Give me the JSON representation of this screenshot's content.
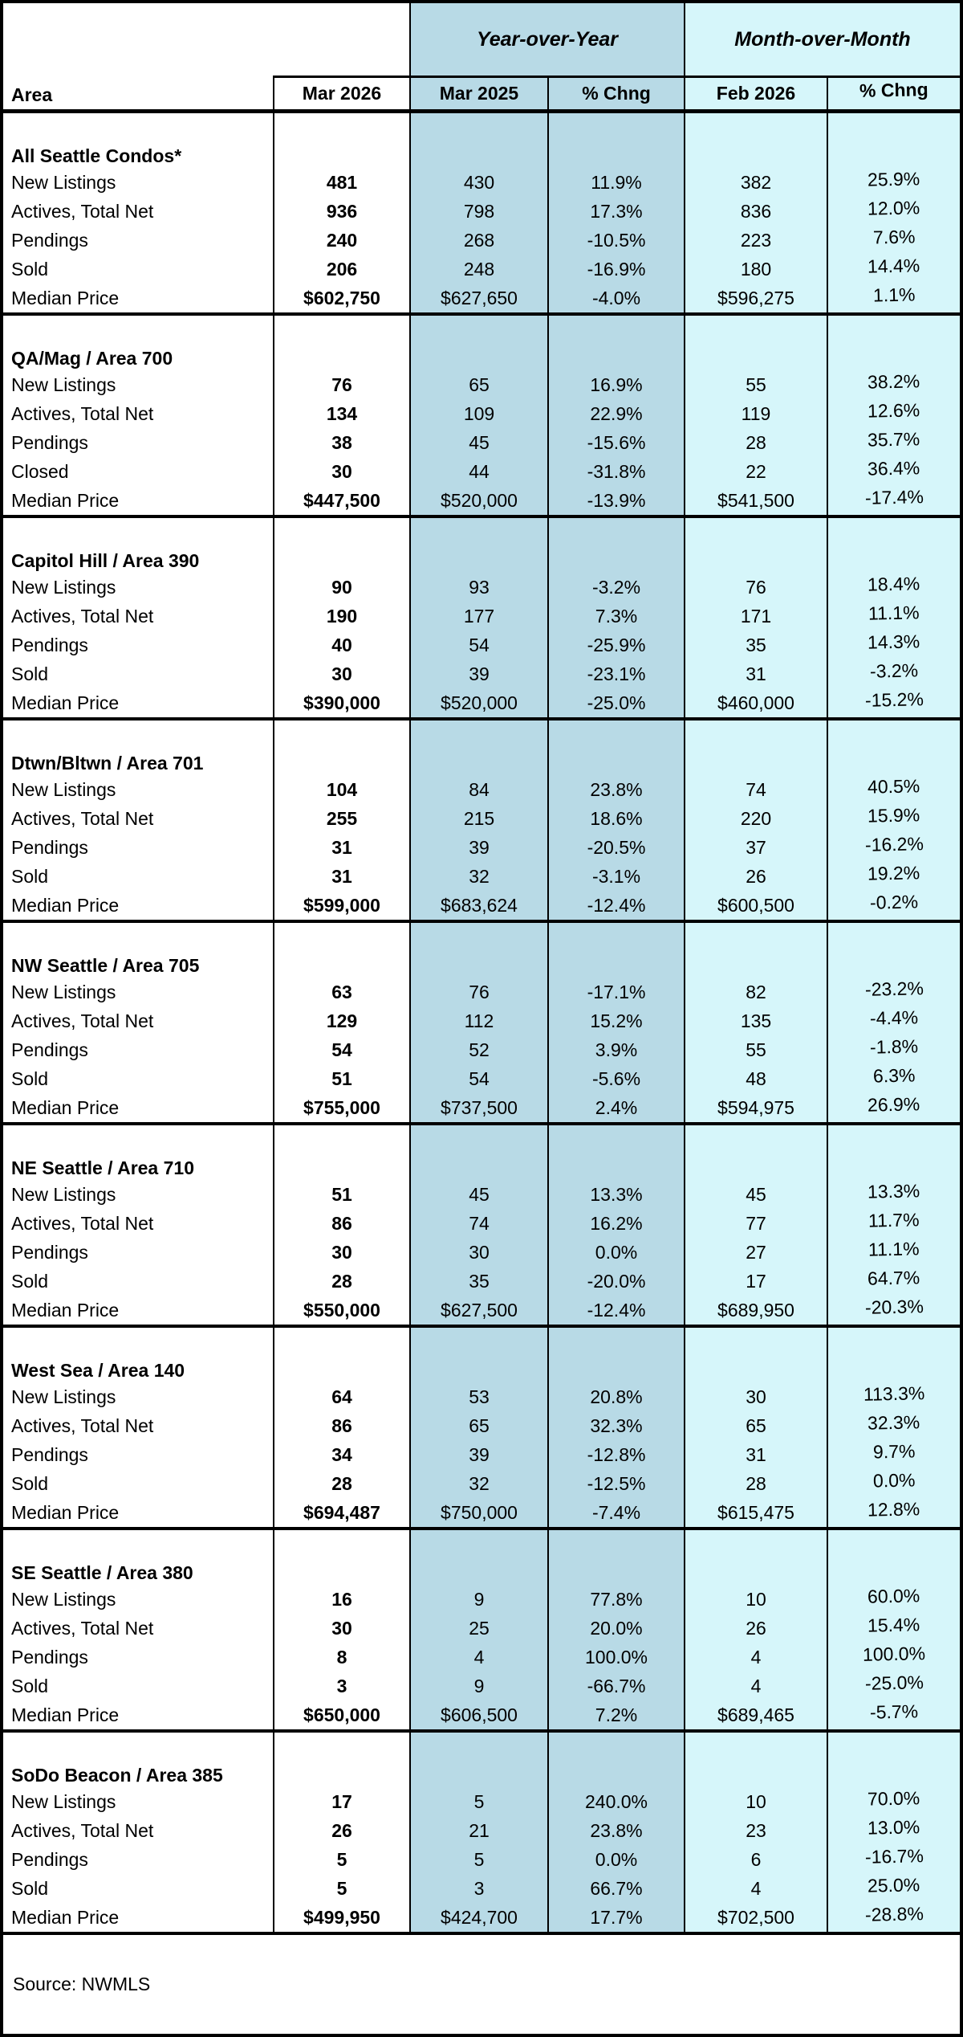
{
  "header": {
    "yoy_label": "Year-over-Year",
    "mom_label": "Month-over-Month"
  },
  "colors": {
    "yoy_bg": "#B8DAE6",
    "mom_bg": "#D6F6FA",
    "border": "#000000"
  },
  "chart_data": {
    "type": "table",
    "column_groups": [
      {
        "label": "",
        "columns": [
          "Area",
          "Mar 2026"
        ]
      },
      {
        "label": "Year-over-Year",
        "columns": [
          "Mar 2025",
          "% Chng"
        ]
      },
      {
        "label": "Month-over-Month",
        "columns": [
          "Feb 2026",
          "% Chng"
        ]
      }
    ],
    "columns": [
      "Area",
      "Mar 2026",
      "Mar 2025",
      "% Chng",
      "Feb 2026",
      "% Chng"
    ],
    "sections": [
      {
        "title": "All Seattle Condos*",
        "rows": [
          {
            "label": "New Listings",
            "values": [
              "481",
              "430",
              "11.9%",
              "382",
              "25.9%"
            ]
          },
          {
            "label": "Actives, Total Net",
            "values": [
              "936",
              "798",
              "17.3%",
              "836",
              "12.0%"
            ]
          },
          {
            "label": "Pendings",
            "values": [
              "240",
              "268",
              "-10.5%",
              "223",
              "7.6%"
            ]
          },
          {
            "label": "Sold",
            "values": [
              "206",
              "248",
              "-16.9%",
              "180",
              "14.4%"
            ]
          },
          {
            "label": "Median Price",
            "values": [
              "$602,750",
              "$627,650",
              "-4.0%",
              "$596,275",
              "1.1%"
            ]
          }
        ]
      },
      {
        "title": "QA/Mag  / Area 700",
        "rows": [
          {
            "label": "New Listings",
            "values": [
              "76",
              "65",
              "16.9%",
              "55",
              "38.2%"
            ]
          },
          {
            "label": "Actives, Total Net",
            "values": [
              "134",
              "109",
              "22.9%",
              "119",
              "12.6%"
            ]
          },
          {
            "label": "Pendings",
            "values": [
              "38",
              "45",
              "-15.6%",
              "28",
              "35.7%"
            ]
          },
          {
            "label": "Closed",
            "values": [
              "30",
              "44",
              "-31.8%",
              "22",
              "36.4%"
            ]
          },
          {
            "label": "Median Price",
            "values": [
              "$447,500",
              "$520,000",
              "-13.9%",
              "$541,500",
              "-17.4%"
            ]
          }
        ]
      },
      {
        "title": "Capitol Hill / Area 390",
        "rows": [
          {
            "label": "New Listings",
            "values": [
              "90",
              "93",
              "-3.2%",
              "76",
              "18.4%"
            ]
          },
          {
            "label": "Actives, Total Net",
            "values": [
              "190",
              "177",
              "7.3%",
              "171",
              "11.1%"
            ]
          },
          {
            "label": "Pendings",
            "values": [
              "40",
              "54",
              "-25.9%",
              "35",
              "14.3%"
            ]
          },
          {
            "label": "Sold",
            "values": [
              "30",
              "39",
              "-23.1%",
              "31",
              "-3.2%"
            ]
          },
          {
            "label": "Median Price",
            "values": [
              "$390,000",
              "$520,000",
              "-25.0%",
              "$460,000",
              "-15.2%"
            ]
          }
        ]
      },
      {
        "title": "Dtwn/Bltwn / Area 701",
        "rows": [
          {
            "label": "New Listings",
            "values": [
              "104",
              "84",
              "23.8%",
              "74",
              "40.5%"
            ]
          },
          {
            "label": "Actives, Total Net",
            "values": [
              "255",
              "215",
              "18.6%",
              "220",
              "15.9%"
            ]
          },
          {
            "label": "Pendings",
            "values": [
              "31",
              "39",
              "-20.5%",
              "37",
              "-16.2%"
            ]
          },
          {
            "label": "Sold",
            "values": [
              "31",
              "32",
              "-3.1%",
              "26",
              "19.2%"
            ]
          },
          {
            "label": "Median Price",
            "values": [
              "$599,000",
              "$683,624",
              "-12.4%",
              "$600,500",
              "-0.2%"
            ]
          }
        ]
      },
      {
        "title": "NW Seattle / Area 705",
        "rows": [
          {
            "label": "New Listings",
            "values": [
              "63",
              "76",
              "-17.1%",
              "82",
              "-23.2%"
            ]
          },
          {
            "label": "Actives, Total Net",
            "values": [
              "129",
              "112",
              "15.2%",
              "135",
              "-4.4%"
            ]
          },
          {
            "label": "Pendings",
            "values": [
              "54",
              "52",
              "3.9%",
              "55",
              "-1.8%"
            ]
          },
          {
            "label": "Sold",
            "values": [
              "51",
              "54",
              "-5.6%",
              "48",
              "6.3%"
            ]
          },
          {
            "label": "Median Price",
            "values": [
              "$755,000",
              "$737,500",
              "2.4%",
              "$594,975",
              "26.9%"
            ]
          }
        ]
      },
      {
        "title": "NE Seattle  / Area 710",
        "rows": [
          {
            "label": "New Listings",
            "values": [
              "51",
              "45",
              "13.3%",
              "45",
              "13.3%"
            ]
          },
          {
            "label": "Actives, Total Net",
            "values": [
              "86",
              "74",
              "16.2%",
              "77",
              "11.7%"
            ]
          },
          {
            "label": "Pendings",
            "values": [
              "30",
              "30",
              "0.0%",
              "27",
              "11.1%"
            ]
          },
          {
            "label": "Sold",
            "values": [
              "28",
              "35",
              "-20.0%",
              "17",
              "64.7%"
            ]
          },
          {
            "label": "Median Price",
            "values": [
              "$550,000",
              "$627,500",
              "-12.4%",
              "$689,950",
              "-20.3%"
            ]
          }
        ]
      },
      {
        "title": "West Sea / Area 140",
        "rows": [
          {
            "label": "New Listings",
            "values": [
              "64",
              "53",
              "20.8%",
              "30",
              "113.3%"
            ]
          },
          {
            "label": "Actives, Total Net",
            "values": [
              "86",
              "65",
              "32.3%",
              "65",
              "32.3%"
            ]
          },
          {
            "label": "Pendings",
            "values": [
              "34",
              "39",
              "-12.8%",
              "31",
              "9.7%"
            ]
          },
          {
            "label": "Sold",
            "values": [
              "28",
              "32",
              "-12.5%",
              "28",
              "0.0%"
            ]
          },
          {
            "label": "Median Price",
            "values": [
              "$694,487",
              "$750,000",
              "-7.4%",
              "$615,475",
              "12.8%"
            ]
          }
        ]
      },
      {
        "title": "SE Seattle / Area 380",
        "rows": [
          {
            "label": "New Listings",
            "values": [
              "16",
              "9",
              "77.8%",
              "10",
              "60.0%"
            ]
          },
          {
            "label": "Actives, Total Net",
            "values": [
              "30",
              "25",
              "20.0%",
              "26",
              "15.4%"
            ]
          },
          {
            "label": "Pendings",
            "values": [
              "8",
              "4",
              "100.0%",
              "4",
              "100.0%"
            ]
          },
          {
            "label": "Sold",
            "values": [
              "3",
              "9",
              "-66.7%",
              "4",
              "-25.0%"
            ]
          },
          {
            "label": "Median Price",
            "values": [
              "$650,000",
              "$606,500",
              "7.2%",
              "$689,465",
              "-5.7%"
            ]
          }
        ]
      },
      {
        "title": "SoDo Beacon / Area 385",
        "rows": [
          {
            "label": "New Listings",
            "values": [
              "17",
              "5",
              "240.0%",
              "10",
              "70.0%"
            ]
          },
          {
            "label": "Actives, Total Net",
            "values": [
              "26",
              "21",
              "23.8%",
              "23",
              "13.0%"
            ]
          },
          {
            "label": "Pendings",
            "values": [
              "5",
              "5",
              "0.0%",
              "6",
              "-16.7%"
            ]
          },
          {
            "label": "Sold",
            "values": [
              "5",
              "3",
              "66.7%",
              "4",
              "25.0%"
            ]
          },
          {
            "label": "Median Price",
            "values": [
              "$499,950",
              "$424,700",
              "17.7%",
              "$702,500",
              "-28.8%"
            ]
          }
        ]
      }
    ],
    "source": "Source: NWMLS"
  }
}
